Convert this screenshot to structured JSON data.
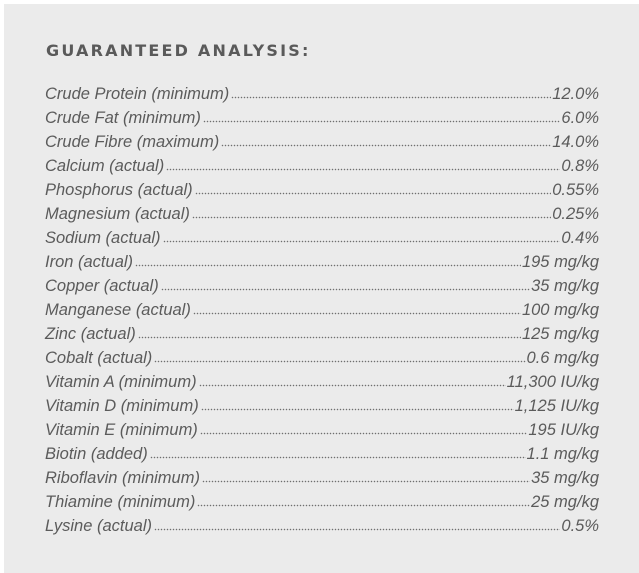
{
  "panel": {
    "title": "GUARANTEED ANALYSIS:"
  },
  "analysis": [
    {
      "name": "Crude Protein (minimum)",
      "value": "12.0%"
    },
    {
      "name": "Crude Fat (minimum)",
      "value": "6.0%"
    },
    {
      "name": "Crude Fibre (maximum)",
      "value": "14.0%"
    },
    {
      "name": "Calcium (actual)",
      "value": "0.8%"
    },
    {
      "name": "Phosphorus (actual)",
      "value": "0.55%"
    },
    {
      "name": "Magnesium (actual)",
      "value": "0.25%"
    },
    {
      "name": "Sodium (actual)",
      "value": "0.4%"
    },
    {
      "name": "Iron (actual)",
      "value": "195 mg/kg"
    },
    {
      "name": "Copper (actual)",
      "value": "35 mg/kg"
    },
    {
      "name": "Manganese (actual)",
      "value": "100 mg/kg"
    },
    {
      "name": "Zinc (actual)",
      "value": "125 mg/kg"
    },
    {
      "name": "Cobalt (actual)",
      "value": "0.6 mg/kg"
    },
    {
      "name": "Vitamin A (minimum)",
      "value": "11,300 IU/kg"
    },
    {
      "name": "Vitamin D (minimum)",
      "value": "1,125 IU/kg"
    },
    {
      "name": "Vitamin E (minimum)",
      "value": "195 IU/kg"
    },
    {
      "name": "Biotin (added)",
      "value": "1.1 mg/kg"
    },
    {
      "name": "Riboflavin (minimum)",
      "value": "35 mg/kg"
    },
    {
      "name": "Thiamine (minimum)",
      "value": "25 mg/kg"
    },
    {
      "name": "Lysine (actual)",
      "value": "0.5%"
    }
  ]
}
